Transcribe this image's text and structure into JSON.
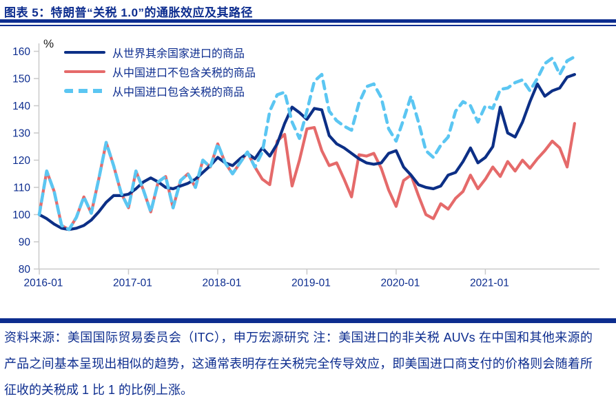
{
  "title": "图表 5：特朗普“关税 1.0”的通胀效应及其路径",
  "pct_label": "%",
  "footer": {
    "text": "资料来源：美国国际贸易委员会（ITC），申万宏源研究 注：美国进口的非关税 AUVs 在中国和其他来源的产品之间基本呈现出相似的趋势，这通常表明存在关税完全传导效应，即美国进口商支付的价格则会随着所征收的关税成 1 比 1 的比例上涨。"
  },
  "colors": {
    "navy_text": "#0d2d8f",
    "world_line": "#0c2f86",
    "china_ex_tariff_line": "#e56a6a",
    "china_incl_tariff_line": "#5bc6f2",
    "axis_gray": "#c9c9c9"
  },
  "chart_data": {
    "type": "line",
    "unit": "%",
    "ylim": [
      80,
      160
    ],
    "yticks": [
      80,
      90,
      100,
      110,
      120,
      130,
      140,
      150,
      160
    ],
    "xtick_labels": [
      "2016-01",
      "2017-01",
      "2018-01",
      "2019-01",
      "2020-01",
      "2021-01"
    ],
    "grid": false,
    "legend_position": "top-left",
    "x": [
      "2016-01",
      "2016-02",
      "2016-03",
      "2016-04",
      "2016-05",
      "2016-06",
      "2016-07",
      "2016-08",
      "2016-09",
      "2016-10",
      "2016-11",
      "2016-12",
      "2017-01",
      "2017-02",
      "2017-03",
      "2017-04",
      "2017-05",
      "2017-06",
      "2017-07",
      "2017-08",
      "2017-09",
      "2017-10",
      "2017-11",
      "2017-12",
      "2018-01",
      "2018-02",
      "2018-03",
      "2018-04",
      "2018-05",
      "2018-06",
      "2018-07",
      "2018-08",
      "2018-09",
      "2018-10",
      "2018-11",
      "2018-12",
      "2019-01",
      "2019-02",
      "2019-03",
      "2019-04",
      "2019-05",
      "2019-06",
      "2019-07",
      "2019-08",
      "2019-09",
      "2019-10",
      "2019-11",
      "2019-12",
      "2020-01",
      "2020-02",
      "2020-03",
      "2020-04",
      "2020-05",
      "2020-06",
      "2020-07",
      "2020-08",
      "2020-09",
      "2020-10",
      "2020-11",
      "2020-12",
      "2021-01",
      "2021-02",
      "2021-03",
      "2021-04",
      "2021-05",
      "2021-06",
      "2021-07",
      "2021-08",
      "2021-09",
      "2021-10",
      "2021-11",
      "2021-12",
      "2022-01"
    ],
    "series": [
      {
        "name": "从世界其余国家进口的商品",
        "style": "solid",
        "color_key": "world_line",
        "values": [
          100,
          98.5,
          96.5,
          95,
          94.5,
          95,
          96,
          98,
          101,
          104.5,
          107,
          107,
          107.5,
          109.5,
          112,
          113.5,
          112,
          110,
          109.5,
          110.5,
          111.5,
          113,
          115.5,
          118,
          121,
          119,
          118,
          120.5,
          122.5,
          120.5,
          124.5,
          121.5,
          126,
          133.5,
          139.5,
          137.5,
          135,
          139,
          138.5,
          129,
          126,
          124.5,
          122.5,
          120.5,
          119,
          118.5,
          119,
          122.5,
          123.5,
          117.5,
          114.5,
          111,
          110,
          109.5,
          110.5,
          114.5,
          115.5,
          119.5,
          124.5,
          119,
          121,
          125,
          139.5,
          130,
          128.5,
          134,
          141.5,
          148,
          143.5,
          145.5,
          146.5,
          150.5,
          151.5
        ]
      },
      {
        "name": "从中国进口不包含关税的商品",
        "style": "solid",
        "color_key": "china_ex_tariff_line",
        "values": [
          100,
          116,
          108.5,
          96,
          94.5,
          99,
          106.5,
          100.5,
          113,
          126.5,
          118,
          108,
          102.5,
          116,
          109,
          101,
          112,
          114,
          102.5,
          112.5,
          115,
          110,
          120,
          117.5,
          126,
          119,
          115,
          119,
          123,
          117.5,
          113,
          111,
          127,
          129.5,
          110.5,
          120,
          131.5,
          132,
          123.5,
          118,
          119,
          113,
          106.5,
          122,
          121.5,
          122.5,
          117,
          109,
          103,
          112.5,
          114.5,
          107,
          100,
          98.5,
          104,
          102,
          106,
          108.5,
          114.5,
          109.5,
          113,
          117.5,
          114,
          119.5,
          116,
          120,
          117,
          120.5,
          123.5,
          127,
          124.5,
          117.5,
          133.5
        ]
      },
      {
        "name": "从中国进口包含关税的商品",
        "style": "dashed",
        "color_key": "china_incl_tariff_line",
        "values": [
          100,
          116,
          108.5,
          96,
          94.5,
          99,
          106.5,
          100.5,
          113,
          126.5,
          118,
          108,
          102.5,
          116,
          109,
          101,
          112,
          114,
          102.5,
          112.5,
          115,
          110,
          120,
          117.5,
          126,
          119,
          115,
          119,
          123,
          117.5,
          123,
          138,
          144,
          145,
          134,
          128,
          138,
          149,
          151.5,
          138,
          134.5,
          132.5,
          131,
          141,
          147,
          148,
          143,
          131.5,
          127,
          135,
          143.5,
          134,
          123.5,
          121,
          125.5,
          128.5,
          138,
          141.5,
          140,
          134,
          140,
          139,
          146,
          146.5,
          148.5,
          149.5,
          145.5,
          150,
          155.5,
          157.5,
          151.5,
          156.5,
          158
        ]
      }
    ]
  }
}
